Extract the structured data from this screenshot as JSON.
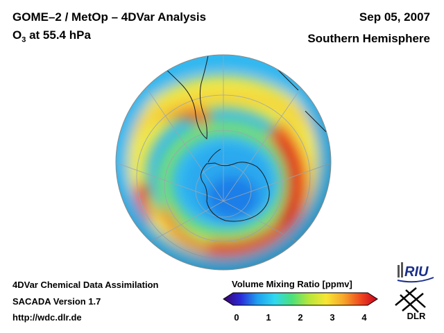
{
  "header": {
    "title_line1": "GOME–2 / MetOp – 4DVar Analysis",
    "title_line2_prefix": "O",
    "title_line2_sub": "3",
    "title_line2_suffix": " at 55.4 hPa",
    "date": "Sep 05, 2007",
    "region": "Southern Hemisphere"
  },
  "footer": {
    "line1": "4DVar Chemical Data Assimilation",
    "line2": "SACADA Version 1.7",
    "line3": "http://wdc.dlr.de"
  },
  "colorbar": {
    "label": "Volume Mixing Ratio [ppmv]",
    "min": 0,
    "max": 4,
    "ticks": [
      "0",
      "1",
      "2",
      "3",
      "4"
    ],
    "colors": [
      "#3a006b",
      "#2a2ad8",
      "#1ea0f0",
      "#2fd8f0",
      "#4be07a",
      "#b8e63a",
      "#f7e634",
      "#f7a82a",
      "#f04a1e",
      "#c8001e"
    ]
  },
  "logos": {
    "riu": "RIU",
    "dlr": "DLR"
  },
  "map": {
    "projection": "orthographic",
    "pole": "south",
    "field": "ozone volume mixing ratio"
  }
}
